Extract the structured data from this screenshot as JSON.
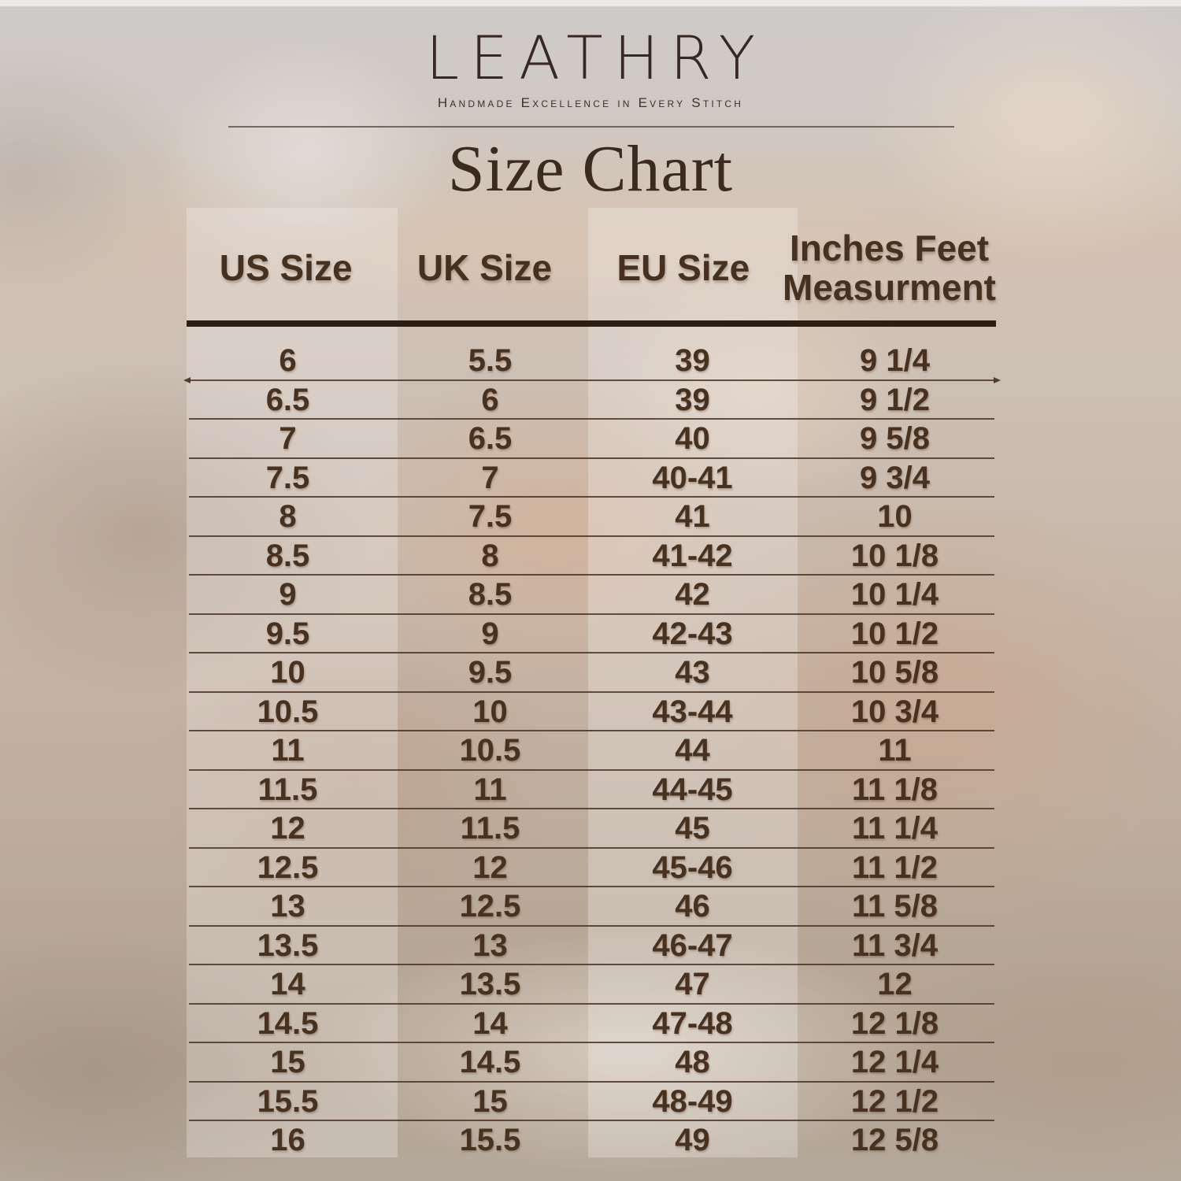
{
  "brand": {
    "logo": "LEATHRY",
    "tagline": "Handmade Excellence in Every Stitch"
  },
  "title": "Size Chart",
  "chart_data": {
    "type": "table",
    "columns": [
      "US Size",
      "UK Size",
      "EU Size",
      "Inches Feet\nMeasurment"
    ],
    "rows": [
      [
        "6",
        "5.5",
        "39",
        "9 1/4"
      ],
      [
        "6.5",
        "6",
        "39",
        "9 1/2"
      ],
      [
        "7",
        "6.5",
        "40",
        "9 5/8"
      ],
      [
        "7.5",
        "7",
        "40-41",
        "9 3/4"
      ],
      [
        "8",
        "7.5",
        "41",
        "10"
      ],
      [
        "8.5",
        "8",
        "41-42",
        "10 1/8"
      ],
      [
        "9",
        "8.5",
        "42",
        "10 1/4"
      ],
      [
        "9.5",
        "9",
        "42-43",
        "10 1/2"
      ],
      [
        "10",
        "9.5",
        "43",
        "10 5/8"
      ],
      [
        "10.5",
        "10",
        "43-44",
        "10 3/4"
      ],
      [
        "11",
        "10.5",
        "44",
        "11"
      ],
      [
        "11.5",
        "11",
        "44-45",
        "11 1/8"
      ],
      [
        "12",
        "11.5",
        "45",
        "11 1/4"
      ],
      [
        "12.5",
        "12",
        "45-46",
        "11 1/2"
      ],
      [
        "13",
        "12.5",
        "46",
        "11 5/8"
      ],
      [
        "13.5",
        "13",
        "46-47",
        "11 3/4"
      ],
      [
        "14",
        "13.5",
        "47",
        "12"
      ],
      [
        "14.5",
        "14",
        "47-48",
        "12 1/8"
      ],
      [
        "15",
        "14.5",
        "48",
        "12 1/4"
      ],
      [
        "15.5",
        "15",
        "48-49",
        "12 1/2"
      ],
      [
        "16",
        "15.5",
        "49",
        "12 5/8"
      ]
    ]
  },
  "colors": {
    "text_brown": "#48321f",
    "title_brown": "#3b2a1e",
    "thick_rule": "#2c1d12",
    "thin_rule": "#4a3426",
    "background_tan": "#b59c87",
    "background_gray": "#bdbaba"
  }
}
